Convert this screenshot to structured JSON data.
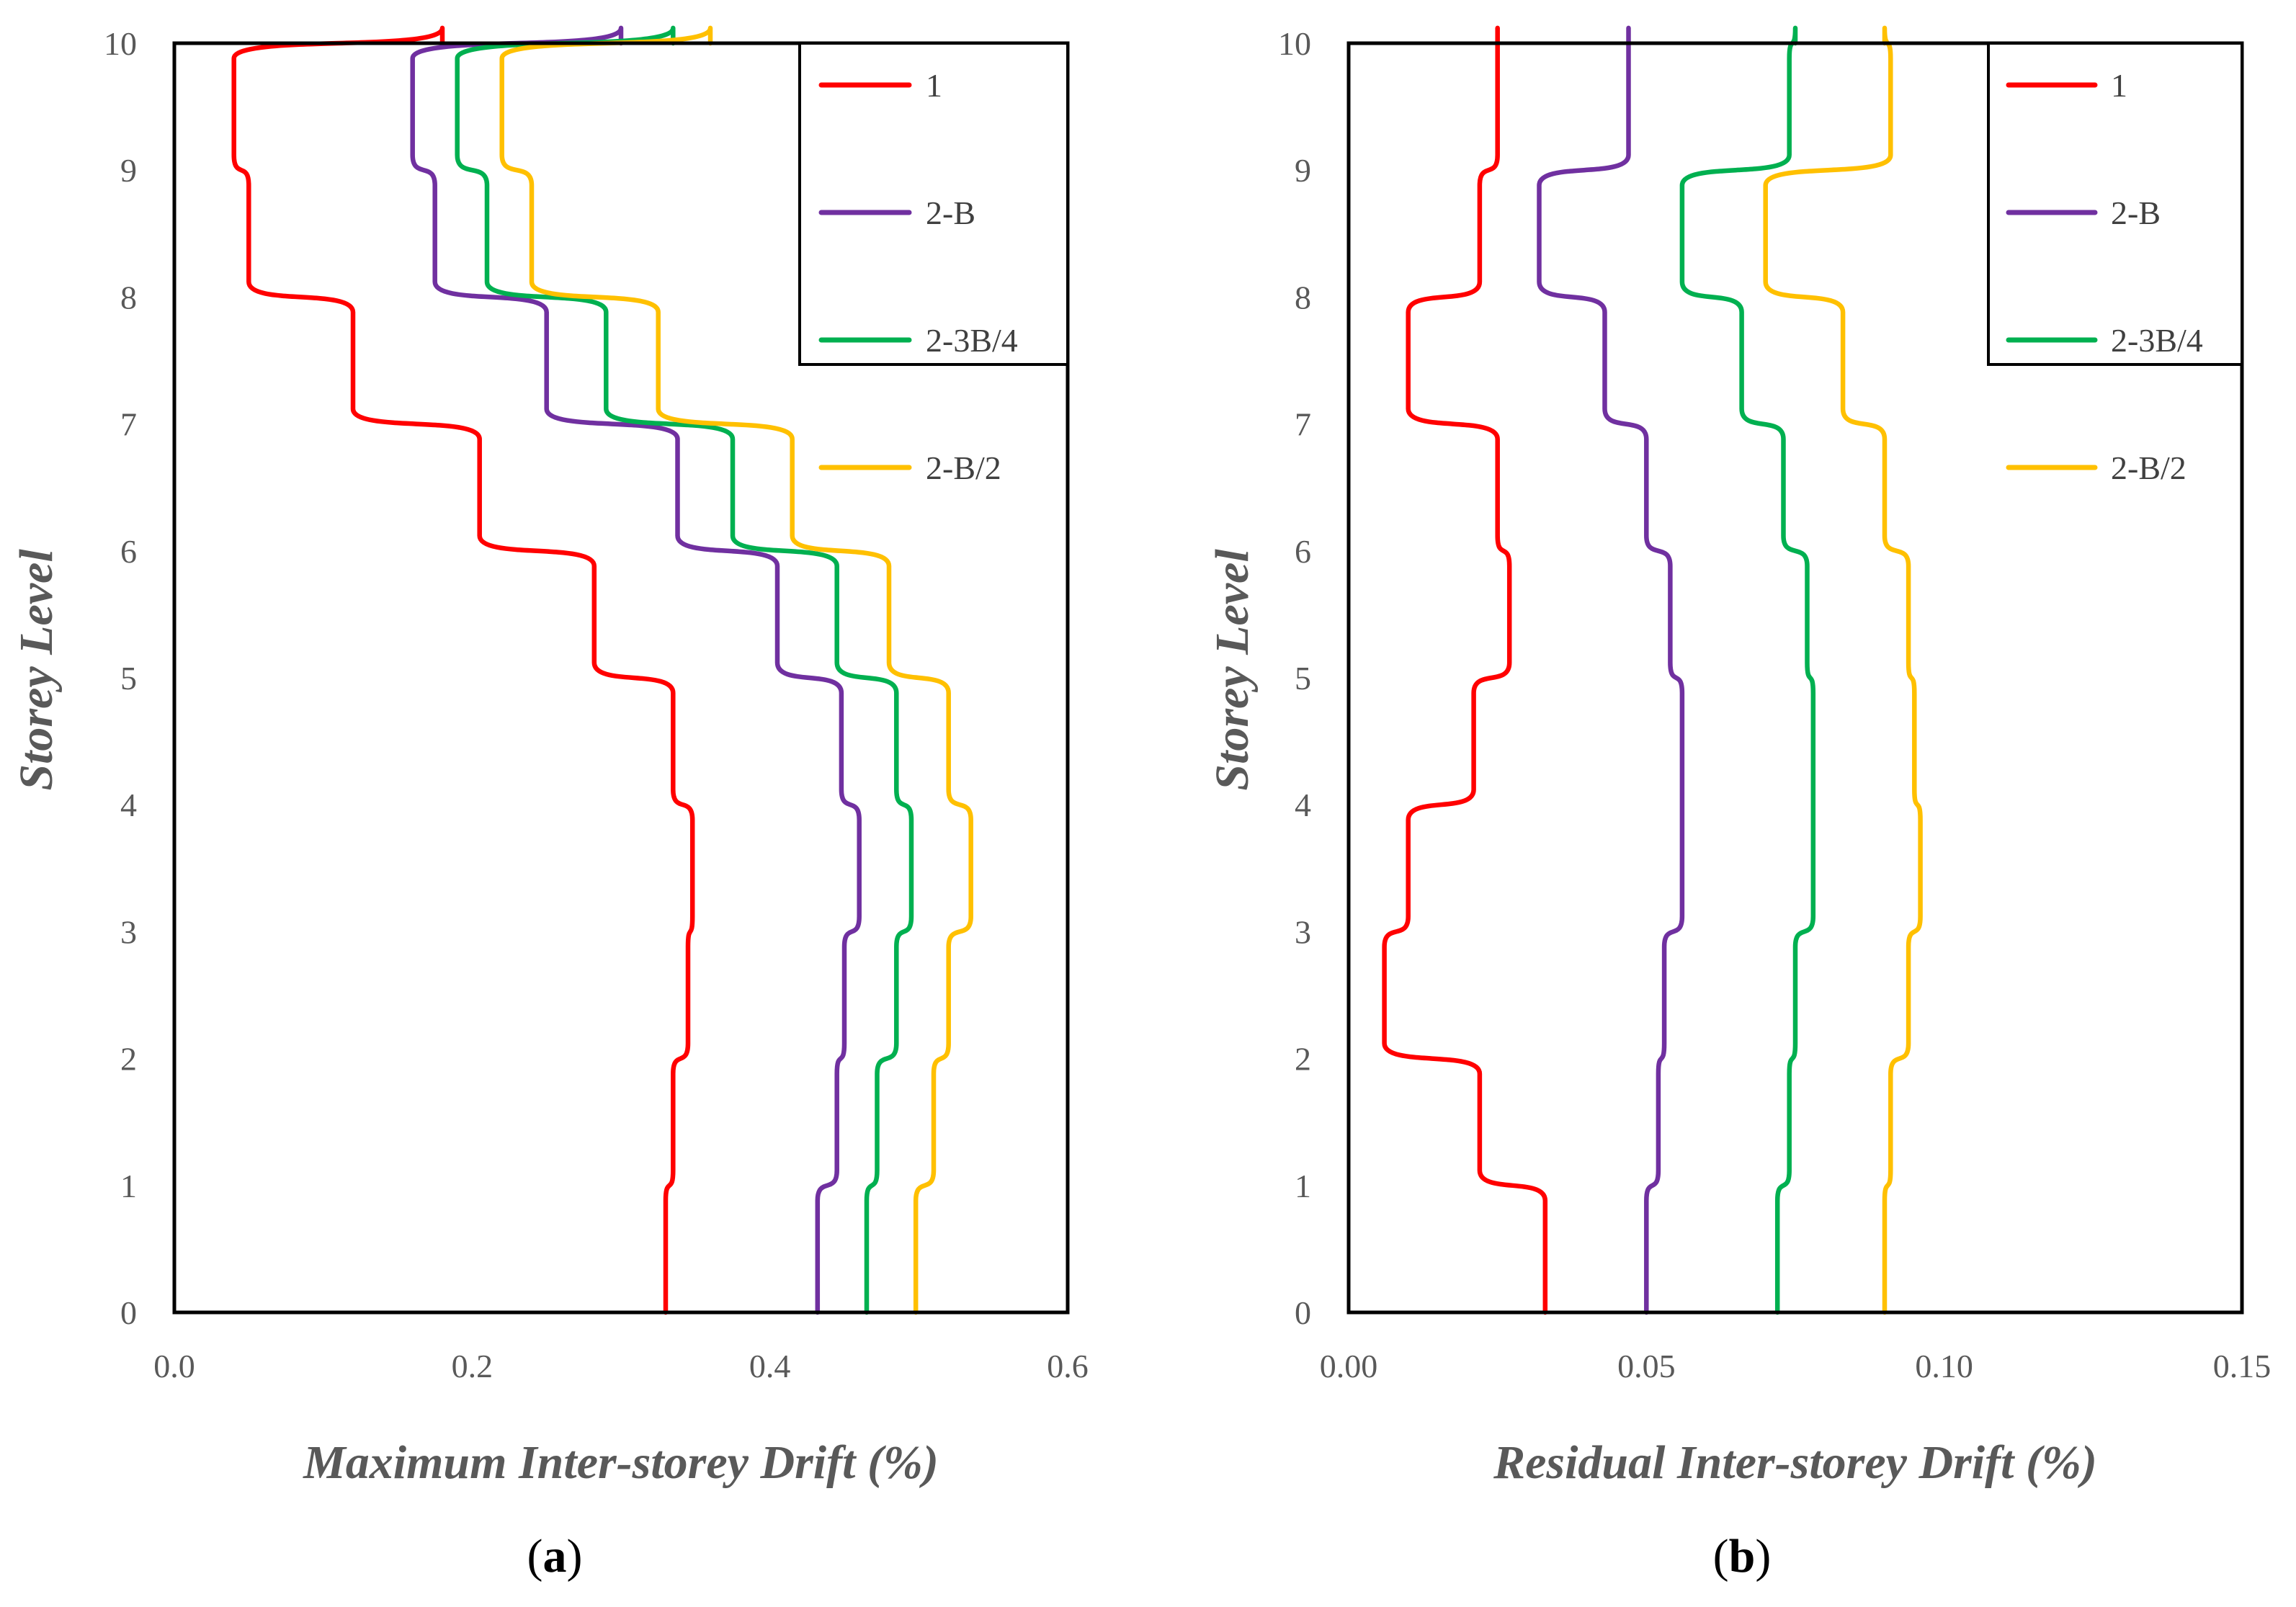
{
  "chart_data": [
    {
      "type": "line",
      "id": "a",
      "caption": "a",
      "xlabel": "Maximum Inter-storey Drift (%)",
      "ylabel": "Storey Level",
      "xlim": [
        0,
        0.6
      ],
      "ylim": [
        0,
        10
      ],
      "xticks": [
        "0.0",
        "0.2",
        "0.4",
        "0.6"
      ],
      "yticks": [
        "0",
        "1",
        "2",
        "3",
        "4",
        "5",
        "6",
        "7",
        "8",
        "9",
        "10"
      ],
      "legend_position": "top-right",
      "series": [
        {
          "name": "1",
          "color": "#ff0000",
          "values": [
            0.33,
            0.335,
            0.345,
            0.348,
            0.335,
            0.282,
            0.205,
            0.12,
            0.05,
            0.04,
            0.18
          ]
        },
        {
          "name": "2-B",
          "color": "#7030a0",
          "values": [
            0.432,
            0.445,
            0.45,
            0.46,
            0.448,
            0.405,
            0.338,
            0.25,
            0.175,
            0.16,
            0.3
          ]
        },
        {
          "name": "2-3B/4",
          "color": "#00b050",
          "values": [
            0.465,
            0.472,
            0.485,
            0.495,
            0.485,
            0.445,
            0.375,
            0.29,
            0.21,
            0.19,
            0.335
          ]
        },
        {
          "name": "2-B/2",
          "color": "#ffc000",
          "values": [
            0.498,
            0.51,
            0.52,
            0.535,
            0.52,
            0.48,
            0.415,
            0.325,
            0.24,
            0.22,
            0.36
          ]
        }
      ]
    },
    {
      "type": "line",
      "id": "b",
      "caption": "b",
      "xlabel": "Residual Inter-storey  Drift (%)",
      "ylabel": "Storey Level",
      "xlim": [
        0,
        0.15
      ],
      "ylim": [
        0,
        10
      ],
      "xticks": [
        "0.00",
        "0.05",
        "0.10",
        "0.15"
      ],
      "yticks": [
        "0",
        "1",
        "2",
        "3",
        "4",
        "5",
        "6",
        "7",
        "8",
        "9",
        "10"
      ],
      "legend_position": "top-right",
      "series": [
        {
          "name": "1",
          "color": "#ff0000",
          "values": [
            0.033,
            0.022,
            0.006,
            0.01,
            0.021,
            0.027,
            0.025,
            0.01,
            0.022,
            0.025,
            0.025
          ]
        },
        {
          "name": "2-B",
          "color": "#7030a0",
          "values": [
            0.05,
            0.052,
            0.053,
            0.056,
            0.056,
            0.054,
            0.05,
            0.043,
            0.032,
            0.047,
            0.047
          ]
        },
        {
          "name": "2-3B/4",
          "color": "#00b050",
          "values": [
            0.072,
            0.074,
            0.075,
            0.078,
            0.078,
            0.077,
            0.073,
            0.066,
            0.056,
            0.074,
            0.075
          ]
        },
        {
          "name": "2-B/2",
          "color": "#ffc000",
          "values": [
            0.09,
            0.091,
            0.094,
            0.096,
            0.095,
            0.094,
            0.09,
            0.083,
            0.07,
            0.091,
            0.09
          ]
        }
      ]
    }
  ]
}
